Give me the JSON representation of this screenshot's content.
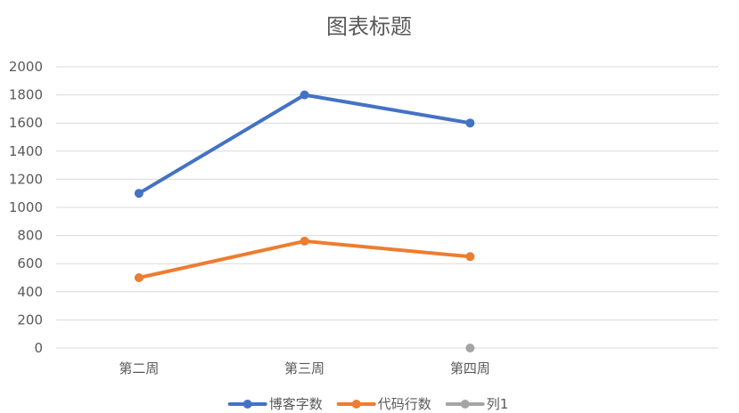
{
  "chart_data": {
    "type": "line",
    "title": "图表标题",
    "categories": [
      "第二周",
      "第三周",
      "第四周"
    ],
    "category_slots": 4,
    "ylim": [
      0,
      2000
    ],
    "yticks": [
      0,
      200,
      400,
      600,
      800,
      1000,
      1200,
      1400,
      1600,
      1800,
      2000
    ],
    "grid": true,
    "legend_position": "bottom",
    "series": [
      {
        "name": "博客字数",
        "color": "#4472c4",
        "values": [
          1100,
          1800,
          1600
        ]
      },
      {
        "name": "代码行数",
        "color": "#ed7d31",
        "values": [
          500,
          760,
          650
        ]
      },
      {
        "name": "列1",
        "color": "#a5a5a5",
        "values": [
          null,
          null,
          0
        ]
      }
    ]
  }
}
